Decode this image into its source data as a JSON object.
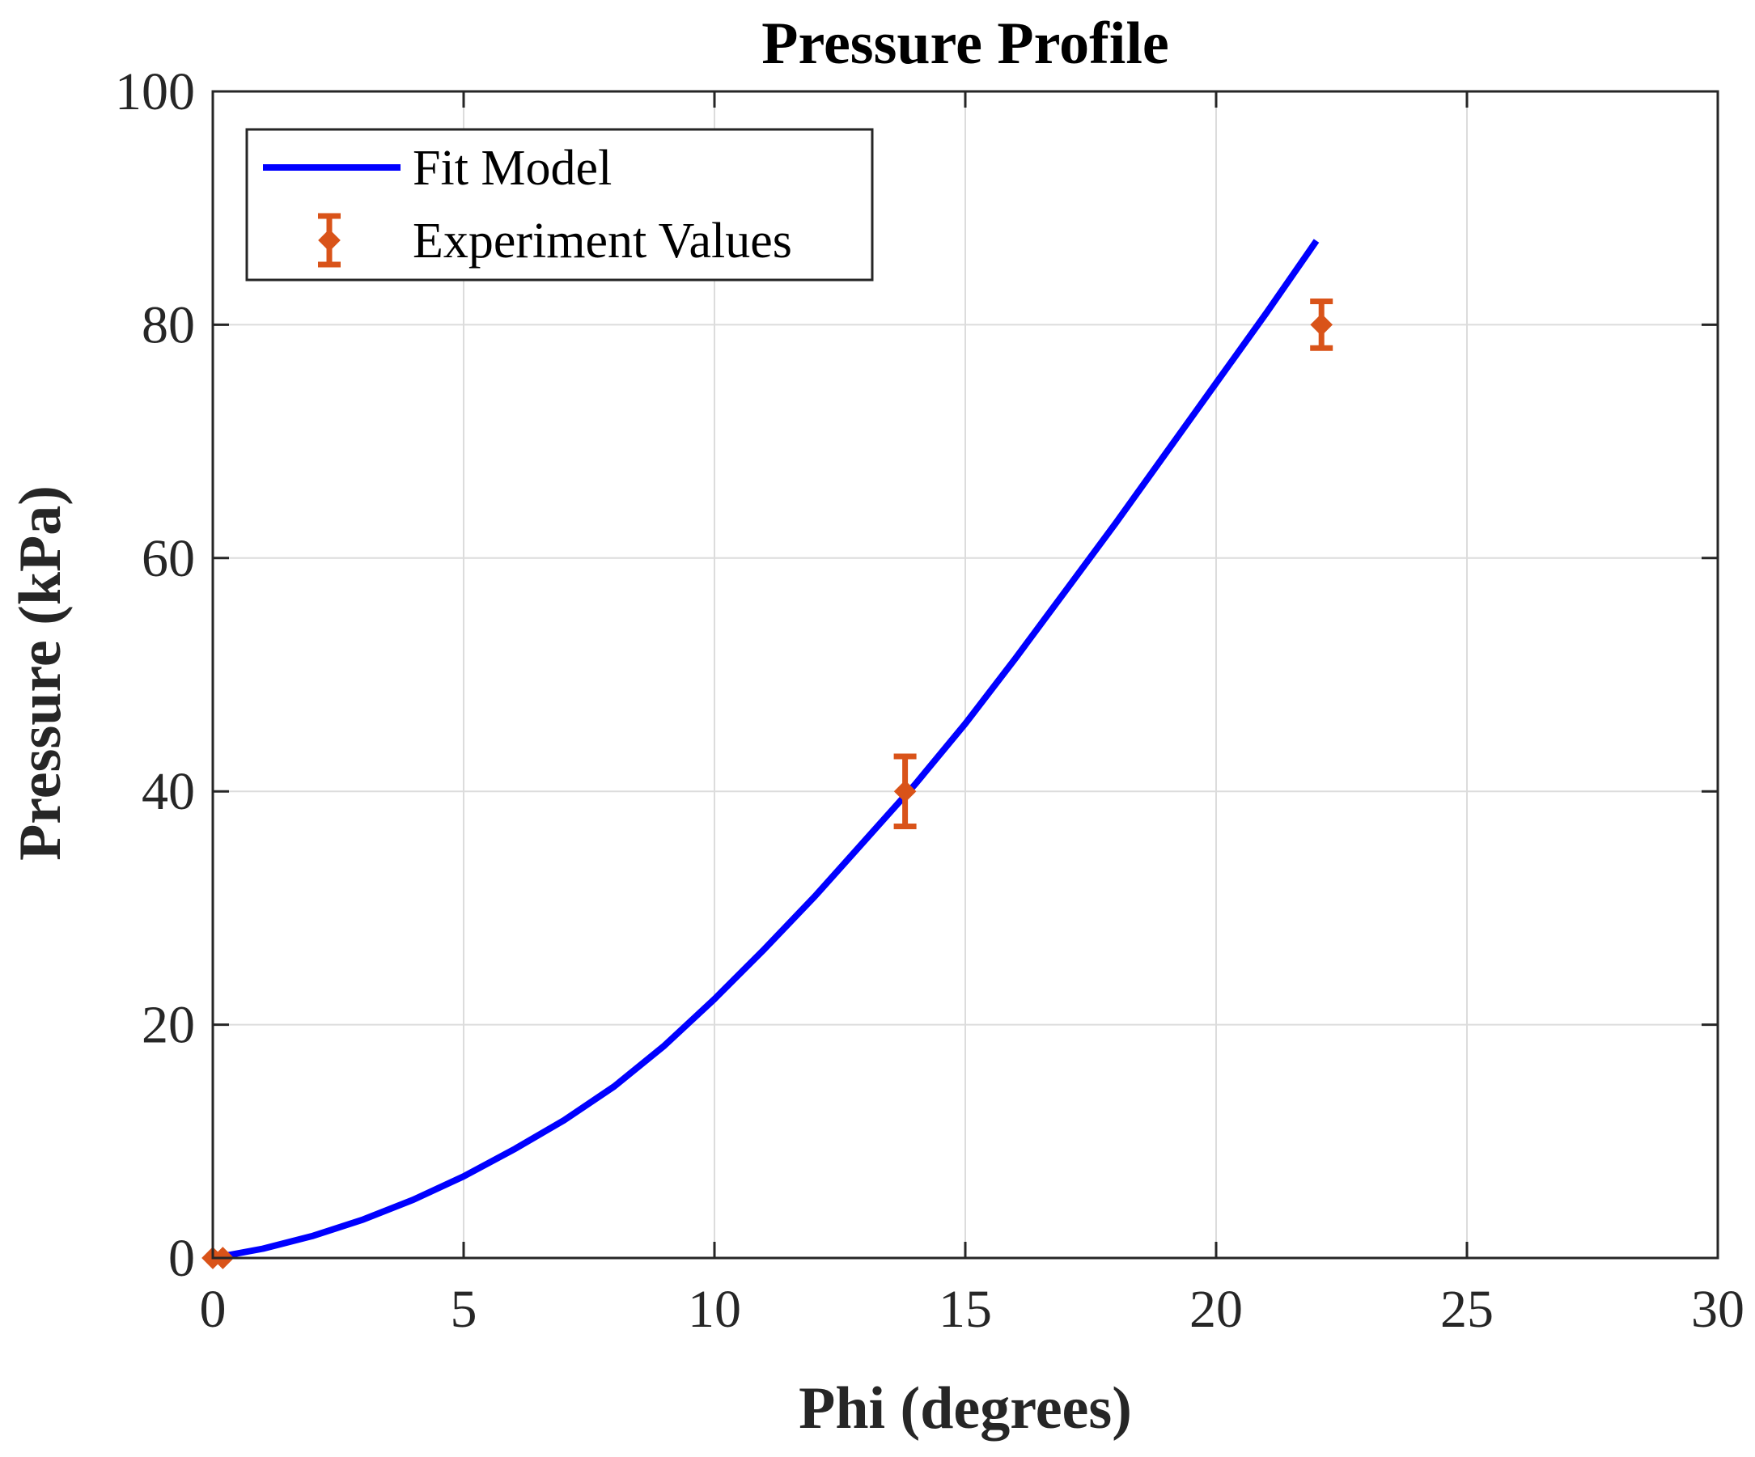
{
  "chart_data": {
    "type": "line",
    "title": "Pressure Profile",
    "xlabel": "Phi (degrees)",
    "ylabel": "Pressure (kPa)",
    "xlim": [
      0,
      30
    ],
    "ylim": [
      0,
      100
    ],
    "xticks": [
      0,
      5,
      10,
      15,
      20,
      25,
      30
    ],
    "yticks": [
      0,
      20,
      40,
      60,
      80,
      100
    ],
    "grid": true,
    "legend": "top-left",
    "series": [
      {
        "name": "Fit Model",
        "kind": "line",
        "color": "#0000ff",
        "x": [
          0,
          1,
          2,
          3,
          4,
          5,
          6,
          7,
          8,
          9,
          10,
          11,
          12,
          13,
          14,
          15,
          16,
          17,
          18,
          19,
          20,
          21,
          22
        ],
        "y": [
          0,
          0.8,
          1.9,
          3.3,
          5.0,
          7.0,
          9.3,
          11.8,
          14.7,
          18.2,
          22.2,
          26.5,
          31.0,
          35.8,
          40.6,
          45.8,
          51.4,
          57.2,
          63.0,
          69.0,
          75.0,
          81.0,
          87.2
        ]
      },
      {
        "name": "Experiment Values",
        "kind": "errorbar",
        "color": "#d95319",
        "x": [
          0,
          0.2,
          13.8,
          22.1
        ],
        "y": [
          0,
          0,
          40,
          80
        ],
        "err": [
          0,
          0,
          3,
          2
        ]
      }
    ]
  }
}
